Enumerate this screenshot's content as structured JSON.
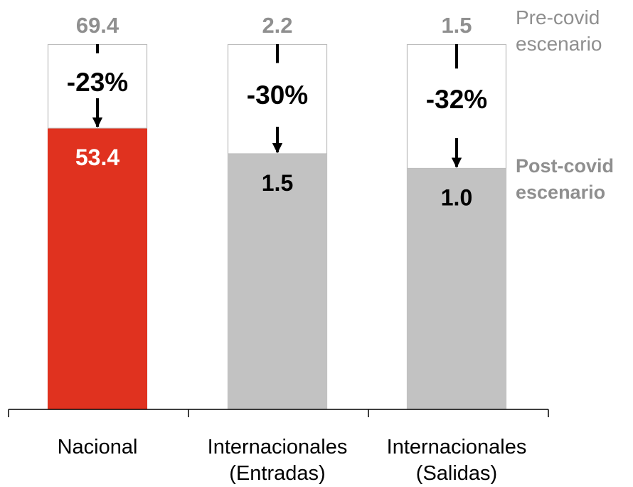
{
  "chart_data": {
    "type": "bar",
    "categories": [
      [
        "Nacional"
      ],
      [
        "Internacionales",
        "(Entradas)"
      ],
      [
        "Internacionales",
        "(Salidas)"
      ]
    ],
    "series": [
      {
        "name": "Pre-covid escenario",
        "values": [
          69.4,
          2.2,
          1.5
        ],
        "labels": [
          "69.4",
          "2.2",
          "1.5"
        ]
      },
      {
        "name": "Post-covid escenario",
        "values": [
          53.4,
          1.5,
          1.0
        ],
        "labels": [
          "53.4",
          "1.5",
          "1.0"
        ]
      }
    ],
    "changes": [
      "-23%",
      "-30%",
      "-32%"
    ],
    "post_share": [
      0.77,
      0.7,
      0.66
    ],
    "colors": {
      "highlight": "#e0321f",
      "post": "#c2c2c2",
      "pre_fill": "#ffffff",
      "pre_border": "#bdbdbd",
      "top_label": "#8f8f8f",
      "arrow": "#000000"
    }
  },
  "legend": {
    "pre": [
      "Pre-covid",
      "escenario"
    ],
    "post": [
      "Post-covid",
      "escenario"
    ]
  }
}
